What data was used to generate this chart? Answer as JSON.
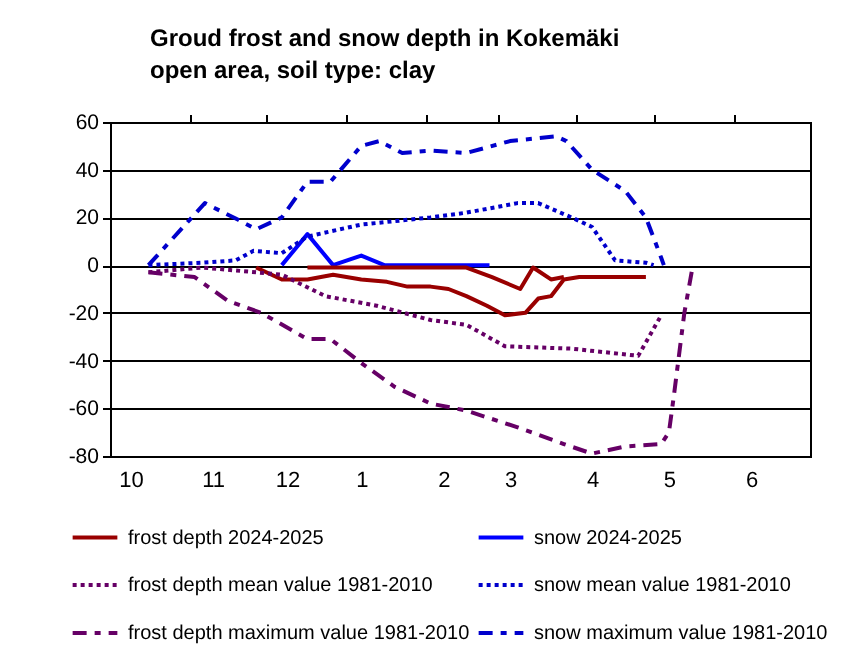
{
  "chart_data": {
    "type": "line",
    "title": "Groud frost and snow depth in Kokemäki",
    "subtitle": "open area, soil type: clay",
    "xlim": [
      "2024-10-01",
      "2025-07-01"
    ],
    "xticks": [
      {
        "value": "2024-10-09",
        "label": "10"
      },
      {
        "value": "2024-11-10",
        "label": "11"
      },
      {
        "value": "2024-12-09",
        "label": "12"
      },
      {
        "value": "2025-01-07",
        "label": "1"
      },
      {
        "value": "2025-02-08",
        "label": "2"
      },
      {
        "value": "2025-03-06",
        "label": "3"
      },
      {
        "value": "2025-04-07",
        "label": "4"
      },
      {
        "value": "2025-05-07",
        "label": "5"
      },
      {
        "value": "2025-06-08",
        "label": "6"
      },
      {
        "value": "2024-11-01",
        "label": null
      },
      {
        "value": "2024-12-01",
        "label": null
      },
      {
        "value": "2025-01-01",
        "label": null
      },
      {
        "value": "2025-02-01",
        "label": null
      },
      {
        "value": "2025-03-01",
        "label": null
      },
      {
        "value": "2025-04-01",
        "label": null
      },
      {
        "value": "2025-05-01",
        "label": null
      },
      {
        "value": "2025-06-01",
        "label": null
      }
    ],
    "ylim": [
      -80,
      60
    ],
    "yticks": [
      -80,
      -60,
      -40,
      -20,
      0,
      20,
      40,
      60
    ],
    "grid": "y",
    "legend": "bottom",
    "series": [
      {
        "name": "frost depth 2024-2025",
        "color": "#990000",
        "line_style": "solid",
        "x": [
          "2024-11-27",
          "2024-12-07",
          "2024-12-17",
          "2024-12-27",
          "2025-01-07",
          "2025-01-17",
          "2025-01-25",
          "2025-02-03",
          "2025-02-10",
          "2025-02-17",
          "2025-02-25",
          "2025-03-04",
          "2025-03-12",
          "2025-03-17",
          "2025-03-22",
          "2025-03-27",
          "2025-04-02",
          "2025-04-28"
        ],
        "values": [
          -1,
          -6,
          -6,
          -4,
          -6,
          -7,
          -9,
          -9,
          -10,
          -13,
          -17,
          -21,
          -20,
          -14,
          -13,
          -6,
          -5,
          -5
        ]
      },
      {
        "name": "snow 2024-2025",
        "color": "#0000ff",
        "line_style": "solid",
        "x": [
          "2024-12-07",
          "2024-12-17",
          "2024-12-27",
          "2025-01-07",
          "2025-01-16",
          "2025-02-26"
        ],
        "values": [
          0,
          13,
          0,
          4,
          0,
          0
        ]
      },
      {
        "name": "frost depth mean value 1981-2010",
        "color": "#660066",
        "line_style": "dotted",
        "x": [
          "2024-10-16",
          "2024-11-06",
          "2024-11-27",
          "2024-12-07",
          "2024-12-24",
          "2025-01-13",
          "2025-02-03",
          "2025-02-17",
          "2025-03-04",
          "2025-03-30",
          "2025-04-25",
          "2025-05-04"
        ],
        "values": [
          -3,
          -1,
          -3,
          -4,
          -13,
          -17,
          -23,
          -25,
          -34,
          -35,
          -38,
          -21
        ]
      },
      {
        "name": "snow mean value 1981-2010",
        "color": "#0000cc",
        "line_style": "dotted",
        "x": [
          "2024-10-16",
          "2024-11-06",
          "2024-11-19",
          "2024-11-26",
          "2024-12-07",
          "2024-12-17",
          "2025-01-07",
          "2025-02-03",
          "2025-02-17",
          "2025-03-09",
          "2025-03-17",
          "2025-03-30",
          "2025-04-07",
          "2025-04-16",
          "2025-04-28",
          "2025-05-01"
        ],
        "values": [
          0,
          1,
          2,
          6,
          5,
          12,
          17,
          20,
          22,
          26,
          26,
          20,
          16,
          2,
          1,
          0
        ]
      },
      {
        "name": "frost depth maximum value 1981-2010",
        "color": "#660066",
        "line_style": "dashed",
        "x": [
          "2024-10-16",
          "2024-11-03",
          "2024-11-16",
          "2024-11-29",
          "2024-12-17",
          "2024-12-26",
          "2025-01-07",
          "2025-01-20",
          "2025-02-03",
          "2025-02-17",
          "2025-03-09",
          "2025-03-27",
          "2025-04-07",
          "2025-04-20",
          "2025-05-04",
          "2025-05-07",
          "2025-05-09",
          "2025-05-13",
          "2025-05-16"
        ],
        "values": [
          -3,
          -5,
          -15,
          -20,
          -31,
          -31,
          -41,
          -51,
          -58,
          -61,
          -68,
          -75,
          -79,
          -76,
          -75,
          -70,
          -54,
          -20,
          -2
        ]
      },
      {
        "name": "snow maximum value 1981-2010",
        "color": "#0000cc",
        "line_style": "dashed",
        "x": [
          "2024-10-16",
          "2024-11-07",
          "2024-11-20",
          "2024-11-27",
          "2024-12-07",
          "2024-12-17",
          "2024-12-26",
          "2025-01-07",
          "2025-01-14",
          "2025-01-23",
          "2025-02-03",
          "2025-02-17",
          "2025-03-06",
          "2025-03-24",
          "2025-03-28",
          "2025-04-07",
          "2025-04-20",
          "2025-04-28",
          "2025-05-04",
          "2025-05-05"
        ],
        "values": [
          0,
          26,
          19,
          15,
          20,
          35,
          35,
          50,
          52,
          47,
          48,
          47,
          52,
          54,
          52,
          40,
          31,
          20,
          3,
          0
        ]
      },
      {
        "color": "#990000",
        "line_style": "solid",
        "x": [
          "2024-12-17",
          "2025-01-07",
          "2025-02-03",
          "2025-02-17",
          "2025-02-27",
          "2025-03-10",
          "2025-03-15",
          "2025-03-22",
          "2025-03-27"
        ],
        "values": [
          -1,
          -1,
          -1,
          -1,
          -5,
          -10,
          -1,
          -6,
          -5
        ]
      }
    ]
  }
}
